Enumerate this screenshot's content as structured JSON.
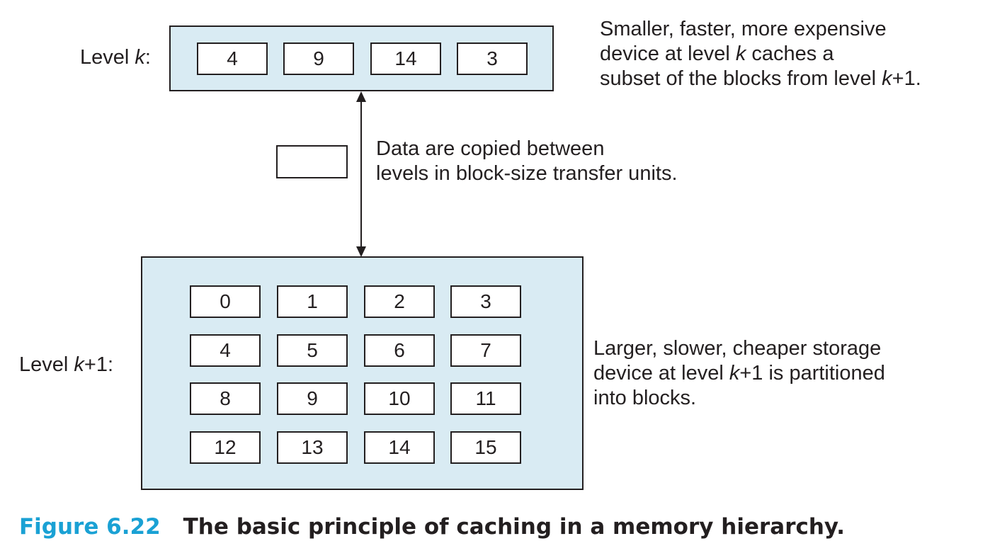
{
  "level_k": {
    "label_prefix": "Level ",
    "label_var": "k",
    "label_suffix": ":",
    "blocks": [
      "4",
      "9",
      "14",
      "3"
    ]
  },
  "level_k1": {
    "label_prefix": "Level ",
    "label_var": "k",
    "label_suffix": "+1:",
    "blocks": [
      "0",
      "1",
      "2",
      "3",
      "4",
      "5",
      "6",
      "7",
      "8",
      "9",
      "10",
      "11",
      "12",
      "13",
      "14",
      "15"
    ]
  },
  "desc_top": {
    "line1": "Smaller, faster, more expensive",
    "line2_a": "device at level ",
    "line2_var": "k",
    "line2_b": " caches a",
    "line3_a": "subset of the blocks from level ",
    "line3_var": "k",
    "line3_b": "+1."
  },
  "desc_transfer": {
    "line1": "Data are copied between",
    "line2": "levels in block-size transfer units."
  },
  "desc_bottom": {
    "line1": "Larger, slower, cheaper storage",
    "line2_a": "device at level ",
    "line2_var": "k",
    "line2_b": "+1 is partitioned",
    "line3": "into blocks."
  },
  "caption": {
    "number": "Figure 6.22",
    "title": "The basic principle of caching in a memory hierarchy."
  },
  "colors": {
    "panel_fill": "#d9ebf3",
    "caption_accent": "#1aa1d4"
  }
}
